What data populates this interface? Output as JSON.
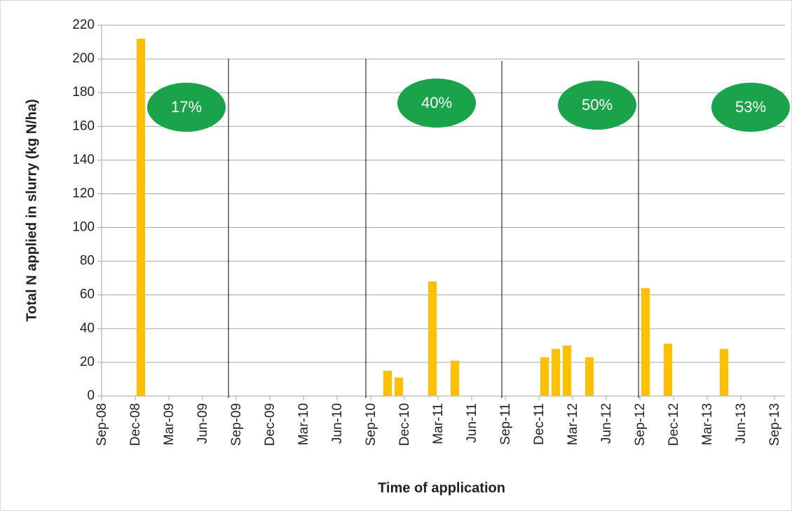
{
  "chart_data": {
    "type": "bar",
    "x_label": "Time of application",
    "y_label": "Total N applied in slurry (kg N/ha)",
    "categories": [
      "Sep-08",
      null,
      null,
      "Dec-08",
      null,
      null,
      "Mar-09",
      null,
      null,
      "Jun-09",
      null,
      null,
      "Sep-09",
      null,
      null,
      "Dec-09",
      null,
      null,
      "Mar-10",
      null,
      null,
      "Jun-10",
      null,
      null,
      "Sep-10",
      null,
      null,
      "Dec-10",
      null,
      null,
      "Mar-11",
      null,
      null,
      "Jun-11",
      null,
      null,
      "Sep-11",
      null,
      null,
      "Dec-11",
      null,
      null,
      "Mar-12",
      null,
      null,
      "Jun-12",
      null,
      null,
      "Sep-12",
      null,
      null,
      "Dec-12",
      null,
      null,
      "Mar-13",
      null,
      null,
      "Jun-13",
      null,
      null,
      "Sep-13"
    ],
    "values": [
      null,
      null,
      null,
      212,
      null,
      null,
      null,
      null,
      null,
      null,
      null,
      null,
      null,
      null,
      null,
      null,
      null,
      null,
      null,
      null,
      null,
      null,
      null,
      null,
      null,
      15,
      11,
      null,
      null,
      68,
      null,
      21,
      null,
      null,
      null,
      null,
      null,
      null,
      null,
      23,
      28,
      30,
      null,
      23,
      null,
      null,
      null,
      null,
      64,
      null,
      31,
      null,
      null,
      null,
      null,
      28,
      null,
      null,
      null,
      null,
      null
    ],
    "color": "#ffc000",
    "ylim": [
      0,
      220
    ],
    "yticks": [
      0,
      20,
      40,
      60,
      80,
      100,
      120,
      140,
      160,
      180,
      200,
      220
    ],
    "grid": true,
    "annotations": [
      "17%",
      "40%",
      "50%",
      "53%"
    ],
    "annotation_color": "#1aa34a"
  }
}
